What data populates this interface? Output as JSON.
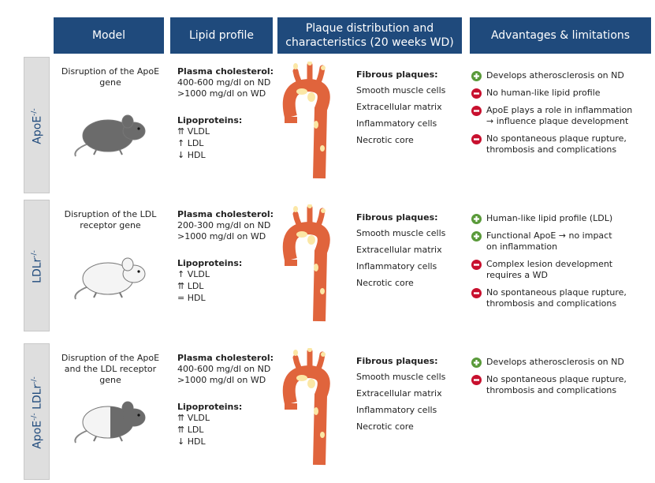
{
  "header": {
    "columns": [
      "Model",
      "Lipid profile",
      "Plaque distribution and characteristics (20 weeks WD)",
      "Advantages & limitations"
    ]
  },
  "rows": [
    {
      "label_parts": [
        "ApoE",
        "-/-"
      ],
      "model": "Disruption of the ApoE gene",
      "cholesterol_title": "Plasma cholesterol:",
      "cholesterol": [
        "400-600 mg/dl on ND",
        ">1000 mg/dl on WD"
      ],
      "lipoproteins_title": "Lipoproteins:",
      "lipoproteins": [
        "⇈ VLDL",
        "↑ LDL",
        "↓ HDL"
      ],
      "plaque_title": "Fibrous plaques:",
      "plaque": [
        "Smooth muscle cells",
        "Extracellular matrix",
        "Inflammatory cells",
        "Necrotic core"
      ],
      "advantages": [
        {
          "kind": "plus",
          "lines": [
            "Develops atherosclerosis on ND"
          ]
        },
        {
          "kind": "minus",
          "lines": [
            "No human-like lipid profile"
          ]
        },
        {
          "kind": "minus",
          "lines": [
            "ApoE plays a role in inflammation",
            "→ influence plaque development"
          ]
        },
        {
          "kind": "minus",
          "lines": [
            "No spontaneous plaque rupture,",
            "thrombosis and complications"
          ]
        }
      ],
      "mouse": "dark"
    },
    {
      "label_parts": [
        "LDLr",
        "-/-"
      ],
      "model": "Disruption of the LDL receptor gene",
      "cholesterol_title": "Plasma cholesterol:",
      "cholesterol": [
        "200-300 mg/dl on ND",
        ">1000 mg/dl on WD"
      ],
      "lipoproteins_title": "Lipoproteins:",
      "lipoproteins": [
        "↑ VLDL",
        "⇈ LDL",
        "= HDL"
      ],
      "plaque_title": "Fibrous plaques:",
      "plaque": [
        "Smooth muscle cells",
        "Extracellular matrix",
        "Inflammatory cells",
        "Necrotic core"
      ],
      "advantages": [
        {
          "kind": "plus",
          "lines": [
            "Human-like lipid profile (LDL)"
          ]
        },
        {
          "kind": "plus",
          "lines": [
            "Functional ApoE → no impact",
            "on inflammation"
          ]
        },
        {
          "kind": "minus",
          "lines": [
            "Complex lesion development",
            "requires a WD"
          ]
        },
        {
          "kind": "minus",
          "lines": [
            "No spontaneous plaque rupture,",
            "thrombosis and complications"
          ]
        }
      ],
      "mouse": "white"
    },
    {
      "label_parts": [
        "ApoE",
        "-/-",
        " LDLr",
        "-/-"
      ],
      "model": "Disruption of the ApoE and the LDL receptor gene",
      "cholesterol_title": "Plasma cholesterol:",
      "cholesterol": [
        "400-600 mg/dl on ND",
        ">1000 mg/dl on WD"
      ],
      "lipoproteins_title": "Lipoproteins:",
      "lipoproteins": [
        "⇈ VLDL",
        "⇈ LDL",
        "↓ HDL"
      ],
      "plaque_title": "Fibrous plaques:",
      "plaque": [
        "Smooth muscle cells",
        "Extracellular matrix",
        "Inflammatory cells",
        "Necrotic core"
      ],
      "advantages": [
        {
          "kind": "plus",
          "lines": [
            "Develops atherosclerosis on ND"
          ]
        },
        {
          "kind": "minus",
          "lines": [
            "No spontaneous plaque rupture,",
            "thrombosis and complications"
          ]
        }
      ],
      "mouse": "half"
    }
  ]
}
